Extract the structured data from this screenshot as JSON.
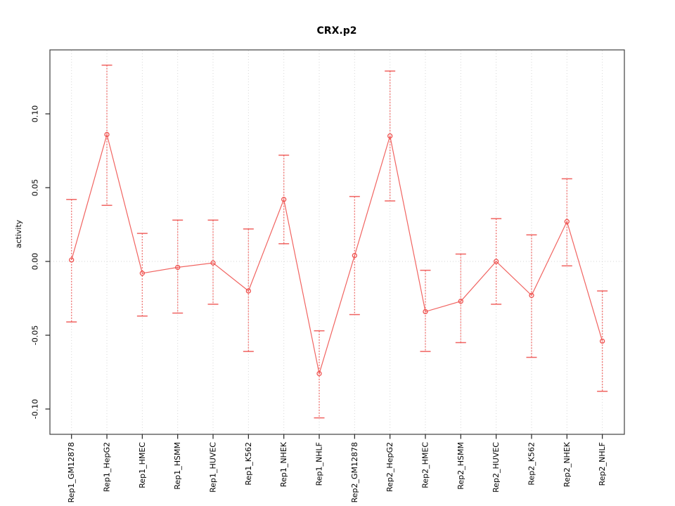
{
  "chart_data": {
    "type": "line",
    "title": "CRX.p2",
    "xlabel": "",
    "ylabel": "activity",
    "legend": "none",
    "grid": "vertical dotted gridline per category; horizontal dotted line at y=0",
    "ylim": [
      -0.117,
      0.143
    ],
    "yticks": [
      0.1,
      0.05,
      0.0,
      -0.05,
      -0.1
    ],
    "ytick_labels": [
      "0.10",
      "0.05",
      "0.00",
      "-0.05",
      "-0.10"
    ],
    "categories": [
      "Rep1_GM12878",
      "Rep1_HepG2",
      "Rep1_HMEC",
      "Rep1_HSMM",
      "Rep1_HUVEC",
      "Rep1_K562",
      "Rep1_NHEK",
      "Rep1_NHLF",
      "Rep2_GM12878",
      "Rep2_HepG2",
      "Rep2_HMEC",
      "Rep2_HSMM",
      "Rep2_HUVEC",
      "Rep2_K562",
      "Rep2_NHEK",
      "Rep2_NHLF"
    ],
    "series": [
      {
        "name": "activity",
        "marker": "open-circle",
        "values": [
          0.001,
          0.086,
          -0.008,
          -0.004,
          -0.001,
          -0.02,
          0.042,
          -0.076,
          0.004,
          0.085,
          -0.034,
          -0.027,
          0.0,
          -0.023,
          0.027,
          -0.054
        ],
        "error_high": [
          0.042,
          0.133,
          0.019,
          0.028,
          0.028,
          0.022,
          0.072,
          -0.047,
          0.044,
          0.129,
          -0.006,
          0.005,
          0.029,
          0.018,
          0.056,
          -0.02
        ],
        "error_low": [
          -0.041,
          0.038,
          -0.037,
          -0.035,
          -0.029,
          -0.061,
          0.012,
          -0.106,
          -0.036,
          0.041,
          -0.061,
          -0.055,
          -0.029,
          -0.065,
          -0.003,
          -0.088
        ]
      }
    ],
    "colors": {
      "series": "#EF5350",
      "grid": "#D6D6D6",
      "box": "#3F3F3F",
      "tick": "#222222",
      "text": "#000000",
      "background": "#FFFFFF"
    }
  }
}
